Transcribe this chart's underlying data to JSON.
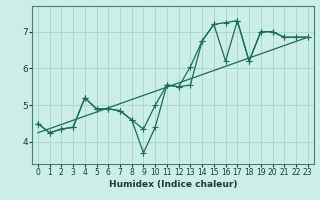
{
  "xlabel": "Humidex (Indice chaleur)",
  "bg_color": "#cceee8",
  "grid_color": "#aad8d0",
  "line_color": "#1a6b5a",
  "xlim": [
    -0.5,
    23.5
  ],
  "ylim": [
    3.4,
    7.7
  ],
  "yticks": [
    4,
    5,
    6,
    7
  ],
  "xticks": [
    0,
    1,
    2,
    3,
    4,
    5,
    6,
    7,
    8,
    9,
    10,
    11,
    12,
    13,
    14,
    15,
    16,
    17,
    18,
    19,
    20,
    21,
    22,
    23
  ],
  "jagged_x": [
    0,
    1,
    2,
    3,
    4,
    5,
    6,
    7,
    8,
    9,
    10,
    11,
    12,
    13,
    14,
    15,
    16,
    17,
    18,
    19,
    20,
    21,
    22,
    23
  ],
  "jagged_y": [
    4.5,
    4.25,
    4.35,
    4.4,
    5.2,
    4.9,
    4.9,
    4.85,
    4.6,
    3.7,
    4.4,
    5.55,
    5.5,
    6.05,
    6.75,
    7.2,
    7.25,
    7.3,
    6.2,
    7.0,
    7.0,
    6.85,
    6.85,
    6.85
  ],
  "envelope_x": [
    0,
    1,
    2,
    3,
    4,
    5,
    6,
    7,
    8,
    9,
    10,
    11,
    12,
    13,
    14,
    15,
    16,
    17,
    18,
    19,
    20,
    21,
    22,
    23
  ],
  "envelope_y": [
    4.5,
    4.25,
    4.35,
    4.4,
    5.2,
    4.9,
    4.9,
    4.85,
    4.6,
    4.35,
    5.0,
    5.55,
    5.5,
    5.55,
    6.75,
    7.2,
    6.2,
    7.3,
    6.2,
    7.0,
    7.0,
    6.85,
    6.85,
    6.85
  ],
  "trend_x": [
    0,
    23
  ],
  "trend_y": [
    4.25,
    6.85
  ],
  "marker_size": 2.5,
  "linewidth": 0.9
}
